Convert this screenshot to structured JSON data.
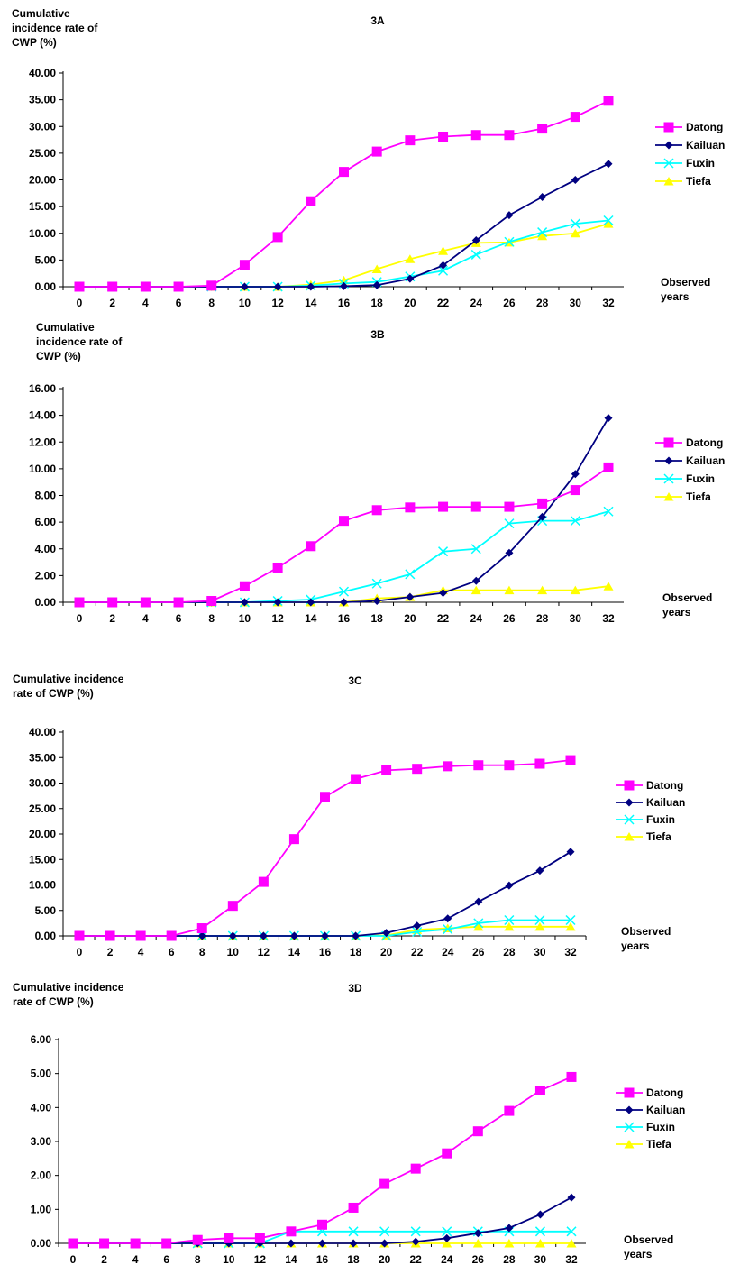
{
  "figure": {
    "colors": {
      "Datong": "#ff00ff",
      "Kailuan": "#000080",
      "Fuxin": "#00ffff",
      "Tiefa": "#ffff00"
    },
    "markers": {
      "Datong": "square",
      "Kailuan": "diamond",
      "Fuxin": "x",
      "Tiefa": "triangle"
    }
  },
  "chart_data": [
    {
      "type": "line",
      "title": "3A",
      "ylabel": [
        "Cumulative",
        "incidence rate of",
        "CWP  (%)"
      ],
      "xlabel": [
        "Observed",
        "years"
      ],
      "ylim": [
        0,
        40
      ],
      "yticks": [
        "0.00",
        "5.00",
        "10.00",
        "15.00",
        "20.00",
        "25.00",
        "30.00",
        "35.00",
        "40.00"
      ],
      "x": [
        0,
        2,
        4,
        6,
        8,
        10,
        12,
        14,
        16,
        18,
        20,
        22,
        24,
        26,
        28,
        30,
        32
      ],
      "legend_position": "right",
      "series": [
        {
          "name": "Datong",
          "values": [
            0,
            0,
            0,
            0,
            0.2,
            4.1,
            9.3,
            16.0,
            21.5,
            25.3,
            27.4,
            28.1,
            28.4,
            28.4,
            29.6,
            31.8,
            34.8
          ]
        },
        {
          "name": "Kailuan",
          "values": [
            0,
            0,
            0,
            0,
            0,
            0,
            0,
            0,
            0.1,
            0.3,
            1.5,
            4.0,
            8.7,
            13.4,
            16.8,
            20.0,
            23.0
          ]
        },
        {
          "name": "Fuxin",
          "values": [
            0,
            0,
            0,
            0,
            0,
            0,
            0,
            0.2,
            0.6,
            0.9,
            1.9,
            3.0,
            6.0,
            8.4,
            10.2,
            11.8,
            12.4
          ]
        },
        {
          "name": "Tiefa",
          "values": [
            0,
            0,
            0,
            0,
            0,
            0,
            0,
            0.4,
            1.2,
            3.3,
            5.2,
            6.7,
            8.2,
            8.3,
            9.5,
            10.0,
            11.8
          ]
        }
      ]
    },
    {
      "type": "line",
      "title": "3B",
      "ylabel": [
        "Cumulative",
        "incidence rate of",
        "CWP  (%)"
      ],
      "xlabel": [
        "Observed",
        "years"
      ],
      "ylim": [
        0,
        16
      ],
      "yticks": [
        "0.00",
        "2.00",
        "4.00",
        "6.00",
        "8.00",
        "10.00",
        "12.00",
        "14.00",
        "16.00"
      ],
      "x": [
        0,
        2,
        4,
        6,
        8,
        10,
        12,
        14,
        16,
        18,
        20,
        22,
        24,
        26,
        28,
        30,
        32
      ],
      "legend_position": "right",
      "series": [
        {
          "name": "Datong",
          "values": [
            0,
            0,
            0,
            0,
            0.1,
            1.2,
            2.6,
            4.2,
            6.1,
            6.9,
            7.1,
            7.15,
            7.15,
            7.15,
            7.4,
            8.4,
            10.1
          ]
        },
        {
          "name": "Kailuan",
          "values": [
            0,
            0,
            0,
            0,
            0,
            0,
            0,
            0,
            0,
            0.1,
            0.4,
            0.7,
            1.6,
            3.7,
            6.4,
            9.6,
            13.8
          ]
        },
        {
          "name": "Fuxin",
          "values": [
            0,
            0,
            0,
            0,
            0,
            0,
            0.1,
            0.2,
            0.8,
            1.4,
            2.1,
            3.8,
            4.0,
            5.9,
            6.1,
            6.1,
            6.8
          ]
        },
        {
          "name": "Tiefa",
          "values": [
            0,
            0,
            0,
            0,
            0,
            0,
            0,
            0,
            0,
            0.3,
            0.4,
            0.9,
            0.9,
            0.9,
            0.9,
            0.9,
            1.2
          ]
        }
      ]
    },
    {
      "type": "line",
      "title": "3C",
      "ylabel": [
        "Cumulative incidence",
        "rate of CWP  (%)"
      ],
      "xlabel": [
        "Observed",
        "years"
      ],
      "ylim": [
        0,
        40
      ],
      "yticks": [
        "0.00",
        "5.00",
        "10.00",
        "15.00",
        "20.00",
        "25.00",
        "30.00",
        "35.00",
        "40.00"
      ],
      "x": [
        0,
        2,
        4,
        6,
        8,
        10,
        12,
        14,
        16,
        18,
        20,
        22,
        24,
        26,
        28,
        30,
        32
      ],
      "legend_position": "right",
      "series": [
        {
          "name": "Datong",
          "values": [
            0,
            0,
            0,
            0,
            1.5,
            5.9,
            10.6,
            19.0,
            27.3,
            30.8,
            32.5,
            32.8,
            33.3,
            33.5,
            33.5,
            33.8,
            34.5
          ]
        },
        {
          "name": "Kailuan",
          "values": [
            0,
            0,
            0,
            0,
            0,
            0,
            0,
            0,
            0,
            0,
            0.6,
            2.0,
            3.4,
            6.7,
            9.9,
            12.8,
            16.5
          ]
        },
        {
          "name": "Fuxin",
          "values": [
            0,
            0,
            0,
            0,
            0,
            0,
            0,
            0,
            0,
            0,
            0,
            0.8,
            1.3,
            2.5,
            3.1,
            3.1,
            3.1
          ]
        },
        {
          "name": "Tiefa",
          "values": [
            0,
            0,
            0,
            0,
            0,
            0,
            0,
            0,
            0,
            0,
            0.1,
            1.2,
            1.5,
            1.8,
            1.8,
            1.8,
            1.8
          ]
        }
      ]
    },
    {
      "type": "line",
      "title": "3D",
      "ylabel": [
        "Cumulative incidence",
        "rate  of CWP (%)"
      ],
      "xlabel": [
        "Observed",
        "years"
      ],
      "ylim": [
        0,
        6
      ],
      "yticks": [
        "0.00",
        "1.00",
        "2.00",
        "3.00",
        "4.00",
        "5.00",
        "6.00"
      ],
      "x": [
        0,
        2,
        4,
        6,
        8,
        10,
        12,
        14,
        16,
        18,
        20,
        22,
        24,
        26,
        28,
        30,
        32
      ],
      "legend_position": "right",
      "series": [
        {
          "name": "Datong",
          "values": [
            0,
            0,
            0,
            0,
            0.1,
            0.15,
            0.15,
            0.35,
            0.55,
            1.05,
            1.75,
            2.2,
            2.65,
            3.3,
            3.9,
            4.5,
            4.9
          ]
        },
        {
          "name": "Kailuan",
          "values": [
            0,
            0,
            0,
            0,
            0,
            0,
            0,
            0,
            0,
            0,
            0,
            0.05,
            0.15,
            0.3,
            0.45,
            0.85,
            1.35
          ]
        },
        {
          "name": "Fuxin",
          "values": [
            0,
            0,
            0,
            0,
            0,
            0,
            0,
            0.35,
            0.35,
            0.35,
            0.35,
            0.35,
            0.35,
            0.35,
            0.35,
            0.35,
            0.35
          ]
        },
        {
          "name": "Tiefa",
          "values": [
            0,
            0,
            0,
            0,
            0,
            0,
            0,
            0,
            0,
            0,
            0,
            0,
            0,
            0,
            0,
            0,
            0
          ]
        }
      ]
    }
  ]
}
